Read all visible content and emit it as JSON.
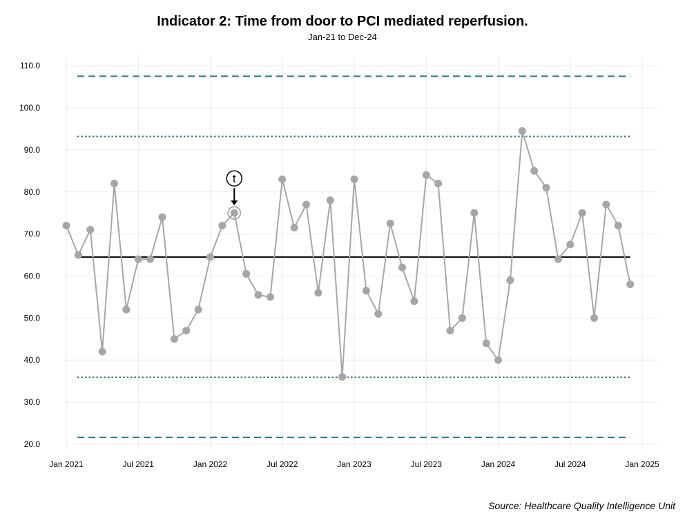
{
  "title": "Indicator 2: Time from door to PCI mediated reperfusion.",
  "subtitle": "Jan-21 to Dec-24",
  "source": "Source: Healthcare Quality Intelligence Unit",
  "chart_data": {
    "type": "line",
    "title": "Indicator 2: Time from door to PCI mediated reperfusion.",
    "subtitle": "Jan-21 to Dec-24",
    "xlabel": "",
    "ylabel": "",
    "x": [
      "2021-01",
      "2021-02",
      "2021-03",
      "2021-04",
      "2021-05",
      "2021-06",
      "2021-07",
      "2021-08",
      "2021-09",
      "2021-10",
      "2021-11",
      "2021-12",
      "2022-01",
      "2022-02",
      "2022-03",
      "2022-04",
      "2022-05",
      "2022-06",
      "2022-07",
      "2022-08",
      "2022-09",
      "2022-10",
      "2022-11",
      "2022-12",
      "2023-01",
      "2023-02",
      "2023-03",
      "2023-04",
      "2023-05",
      "2023-06",
      "2023-07",
      "2023-08",
      "2023-09",
      "2023-10",
      "2023-11",
      "2023-12",
      "2024-01",
      "2024-02",
      "2024-03",
      "2024-04",
      "2024-05",
      "2024-06",
      "2024-07",
      "2024-08",
      "2024-09",
      "2024-10",
      "2024-11",
      "2024-12"
    ],
    "series": [
      {
        "values": [
          72,
          65,
          71,
          42,
          82,
          52,
          64,
          64,
          74,
          45,
          47,
          52,
          64.5,
          72,
          75,
          60.5,
          55.5,
          55,
          83,
          71.5,
          77,
          56,
          78,
          36,
          83,
          56.5,
          51,
          72.5,
          62,
          54,
          84,
          82,
          47,
          50,
          75,
          44,
          40,
          59,
          94.5,
          85,
          81,
          64,
          67.5,
          75,
          50,
          77,
          72,
          58
        ],
        "color": "#a6a6a6"
      }
    ],
    "mean": 64.5,
    "control_limits": {
      "upper_process_limit": 93.2,
      "lower_process_limit": 35.9,
      "color": "#1f7a8c"
    },
    "outer_limits": {
      "upper": 107.5,
      "lower": 21.6,
      "color": "#1f7a8c"
    },
    "annotations": [
      {
        "x": "2022-03",
        "label": "t"
      }
    ],
    "x_ticks": [
      "Jan 2021",
      "Jul 2021",
      "Jan 2022",
      "Jul 2022",
      "Jan 2023",
      "Jul 2023",
      "Jan 2024",
      "Jul 2024",
      "Jan 2025"
    ],
    "y_ticks": [
      "20.0",
      "30.0",
      "40.0",
      "50.0",
      "60.0",
      "70.0",
      "80.0",
      "90.0",
      "100.0",
      "110.0"
    ],
    "ylim": [
      18.5,
      112.5
    ],
    "xlim": [
      "2021-01",
      "2025-01"
    ],
    "grid": true,
    "legend": "none"
  }
}
